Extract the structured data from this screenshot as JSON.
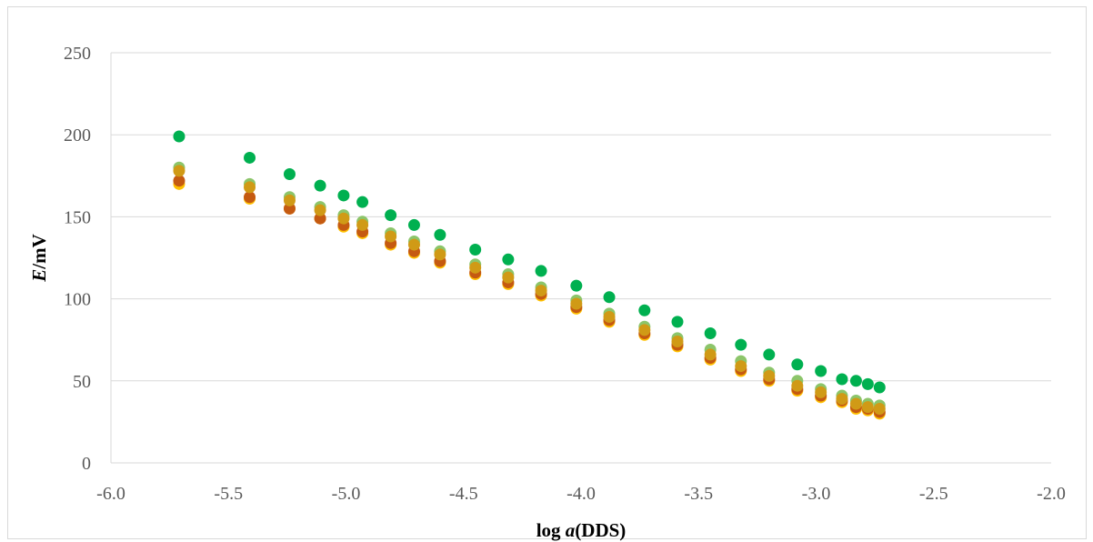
{
  "chart_data": {
    "type": "scatter",
    "title": "",
    "xlabel_prefix": "log ",
    "xlabel_italic": "a",
    "xlabel_suffix": "(DDS)",
    "ylabel_italic": "E",
    "ylabel_suffix": "/mV",
    "xlim": [
      -6.0,
      -2.0
    ],
    "ylim": [
      0,
      250
    ],
    "x_ticks": [
      -6.0,
      -5.5,
      -5.0,
      -4.5,
      -4.0,
      -3.5,
      -3.0,
      -2.5,
      -2.0
    ],
    "x_tick_labels": [
      "-6.0",
      "-5.5",
      "-5.0",
      "-4.5",
      "-4.0",
      "-3.5",
      "-3.0",
      "-2.5",
      "-2.0"
    ],
    "y_ticks": [
      0,
      50,
      100,
      150,
      200,
      250
    ],
    "y_tick_labels": [
      "0",
      "50",
      "100",
      "150",
      "200",
      "250"
    ],
    "grid": "horizontal",
    "legend": "none",
    "x": [
      -5.71,
      -5.41,
      -5.24,
      -5.11,
      -5.01,
      -4.93,
      -4.81,
      -4.71,
      -4.6,
      -4.45,
      -4.31,
      -4.17,
      -4.02,
      -3.88,
      -3.73,
      -3.59,
      -3.45,
      -3.32,
      -3.2,
      -3.08,
      -2.98,
      -2.89,
      -2.83,
      -2.78,
      -2.73
    ],
    "series": [
      {
        "color": "#ffc000",
        "values": [
          170,
          161,
          155,
          149,
          144,
          140,
          133,
          128,
          122,
          115,
          109,
          102,
          94,
          86,
          78,
          71,
          63,
          56,
          50,
          44,
          40,
          37,
          33,
          32,
          30
        ]
      },
      {
        "color": "#c55a11",
        "values": [
          172,
          162,
          155,
          149,
          145,
          141,
          134,
          129,
          123,
          116,
          110,
          103,
          95,
          87,
          79,
          72,
          64,
          57,
          51,
          45,
          41,
          38,
          34,
          33,
          31
        ]
      },
      {
        "color": "#8cc56a",
        "values": [
          180,
          170,
          162,
          156,
          151,
          147,
          140,
          135,
          129,
          121,
          115,
          107,
          99,
          91,
          83,
          76,
          69,
          62,
          55,
          50,
          45,
          41,
          38,
          36,
          35
        ]
      },
      {
        "color": "#d09a16",
        "values": [
          178,
          168,
          160,
          154,
          149,
          145,
          138,
          133,
          127,
          119,
          113,
          105,
          97,
          89,
          81,
          74,
          66,
          59,
          53,
          47,
          43,
          39,
          36,
          34,
          33
        ]
      },
      {
        "color": "#00b050",
        "values": [
          199,
          186,
          176,
          169,
          163,
          159,
          151,
          145,
          139,
          130,
          124,
          117,
          108,
          101,
          93,
          86,
          79,
          72,
          66,
          60,
          56,
          51,
          50,
          48,
          46
        ]
      }
    ]
  }
}
